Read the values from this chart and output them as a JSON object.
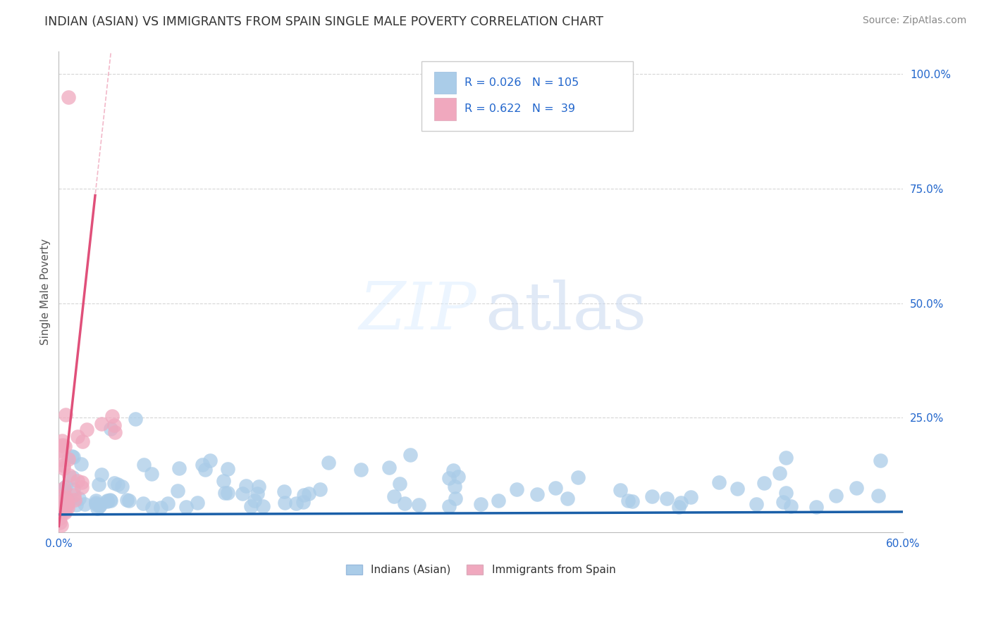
{
  "title": "INDIAN (ASIAN) VS IMMIGRANTS FROM SPAIN SINGLE MALE POVERTY CORRELATION CHART",
  "source": "Source: ZipAtlas.com",
  "ylabel": "Single Male Poverty",
  "xlim": [
    0.0,
    0.6
  ],
  "ylim": [
    0.0,
    1.05
  ],
  "xtick_labels": [
    "0.0%",
    "60.0%"
  ],
  "ytick_labels": [
    "25.0%",
    "50.0%",
    "75.0%",
    "100.0%"
  ],
  "ytick_values": [
    0.25,
    0.5,
    0.75,
    1.0
  ],
  "legend1_label": "Indians (Asian)",
  "legend2_label": "Immigrants from Spain",
  "R1": 0.026,
  "N1": 105,
  "R2": 0.622,
  "N2": 39,
  "color1": "#aacce8",
  "color2": "#f0a8be",
  "line1_color": "#1a5fa8",
  "line2_color": "#e0507a",
  "background_color": "#ffffff",
  "grid_color": "#cccccc",
  "title_color": "#333333",
  "source_color": "#888888",
  "label_color": "#2266cc",
  "watermark_zip_color": "#ddeeff",
  "watermark_atlas_color": "#c8ddf0",
  "seed1": 101,
  "seed2": 202
}
